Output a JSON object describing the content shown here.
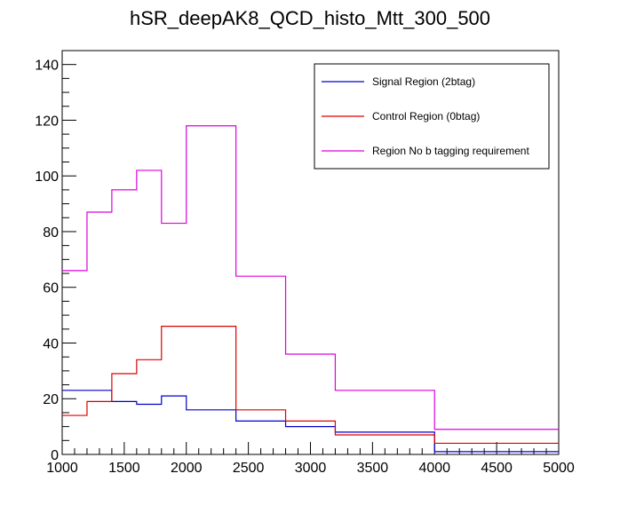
{
  "chart_data": {
    "type": "line",
    "step": true,
    "title": "hSR_deepAK8_QCD_histo_Mtt_300_500",
    "xlabel": "",
    "ylabel": "",
    "xlim": [
      1000,
      5000
    ],
    "ylim": [
      0,
      145
    ],
    "x_ticks": [
      1000,
      1500,
      2000,
      2500,
      3000,
      3500,
      4000,
      4500,
      5000
    ],
    "y_ticks": [
      0,
      20,
      40,
      60,
      80,
      100,
      120,
      140
    ],
    "bin_edges": [
      1000,
      1200,
      1400,
      1600,
      1800,
      2000,
      2400,
      2800,
      3200,
      4000,
      5000
    ],
    "legend_position": "top-right",
    "grid": false,
    "series": [
      {
        "name": "Signal Region (2btag)",
        "color": "#0000cc",
        "values": [
          23,
          23,
          19,
          18,
          21,
          16,
          12,
          10,
          8,
          1
        ]
      },
      {
        "name": "Control Region (0btag)",
        "color": "#dd0000",
        "values": [
          14,
          19,
          29,
          34,
          46,
          46,
          16,
          12,
          7,
          4
        ]
      },
      {
        "name": "Region No b tagging requirement",
        "color": "#dd00dd",
        "values": [
          66,
          87,
          95,
          102,
          83,
          118,
          64,
          36,
          23,
          9
        ]
      }
    ]
  }
}
